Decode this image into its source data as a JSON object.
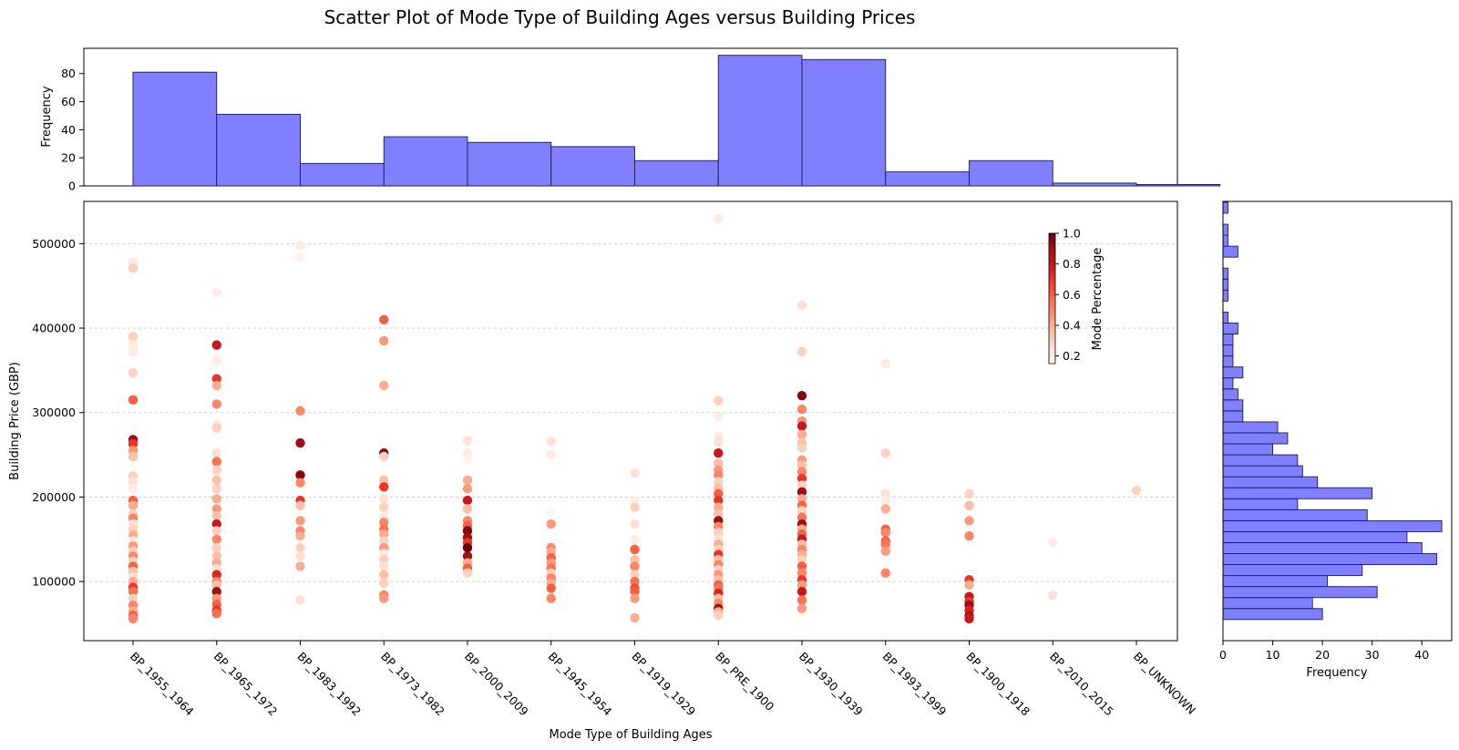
{
  "chart_data": {
    "type": "scatter",
    "title": "Scatter Plot of Mode Type of Building Ages versus Building Prices",
    "xlabel": "Mode Type of Building Ages",
    "ylabel": "Building Price (GBP)",
    "categories": [
      "BP_1955_1964",
      "BP_1965_1972",
      "BP_1983_1992",
      "BP_1973_1982",
      "BP_2000_2009",
      "BP_1945_1954",
      "BP_1919_1929",
      "BP_PRE_1900",
      "BP_1930_1939",
      "BP_1993_1999",
      "BP_1900_1918",
      "BP_2010_2015",
      "BP_UNKNOWN"
    ],
    "ylim": [
      30000,
      550000
    ],
    "yticks": [
      100000,
      200000,
      300000,
      400000,
      500000
    ],
    "grid": "y",
    "colorbar": {
      "label": "Mode Percentage",
      "range": [
        0.15,
        1.0
      ],
      "ticks": [
        0.2,
        0.4,
        0.6,
        0.8,
        1.0
      ],
      "colormap": "Reds"
    },
    "points": [
      [
        0,
        478000,
        0.22
      ],
      [
        0,
        471000,
        0.3
      ],
      [
        0,
        390000,
        0.3
      ],
      [
        0,
        380000,
        0.2
      ],
      [
        0,
        372000,
        0.2
      ],
      [
        0,
        347000,
        0.3
      ],
      [
        0,
        315000,
        0.6
      ],
      [
        0,
        268000,
        0.9
      ],
      [
        0,
        263000,
        0.7
      ],
      [
        0,
        255000,
        0.45
      ],
      [
        0,
        248000,
        0.35
      ],
      [
        0,
        225000,
        0.3
      ],
      [
        0,
        218000,
        0.25
      ],
      [
        0,
        210000,
        0.2
      ],
      [
        0,
        196000,
        0.6
      ],
      [
        0,
        190000,
        0.4
      ],
      [
        0,
        180000,
        0.3
      ],
      [
        0,
        175000,
        0.5
      ],
      [
        0,
        168000,
        0.25
      ],
      [
        0,
        162000,
        0.3
      ],
      [
        0,
        155000,
        0.4
      ],
      [
        0,
        148000,
        0.2
      ],
      [
        0,
        142000,
        0.45
      ],
      [
        0,
        136000,
        0.3
      ],
      [
        0,
        130000,
        0.5
      ],
      [
        0,
        124000,
        0.3
      ],
      [
        0,
        118000,
        0.6
      ],
      [
        0,
        112000,
        0.35
      ],
      [
        0,
        106000,
        0.25
      ],
      [
        0,
        100000,
        0.4
      ],
      [
        0,
        93000,
        0.7
      ],
      [
        0,
        88000,
        0.55
      ],
      [
        0,
        80000,
        0.3
      ],
      [
        0,
        72000,
        0.5
      ],
      [
        0,
        65000,
        0.4
      ],
      [
        0,
        60000,
        0.6
      ],
      [
        0,
        56000,
        0.5
      ],
      [
        1,
        442000,
        0.2
      ],
      [
        1,
        380000,
        0.8
      ],
      [
        1,
        362000,
        0.2
      ],
      [
        1,
        340000,
        0.7
      ],
      [
        1,
        332000,
        0.4
      ],
      [
        1,
        310000,
        0.5
      ],
      [
        1,
        286000,
        0.2
      ],
      [
        1,
        282000,
        0.3
      ],
      [
        1,
        252000,
        0.25
      ],
      [
        1,
        242000,
        0.55
      ],
      [
        1,
        232000,
        0.3
      ],
      [
        1,
        220000,
        0.35
      ],
      [
        1,
        210000,
        0.3
      ],
      [
        1,
        198000,
        0.4
      ],
      [
        1,
        186000,
        0.45
      ],
      [
        1,
        178000,
        0.35
      ],
      [
        1,
        168000,
        0.8
      ],
      [
        1,
        160000,
        0.3
      ],
      [
        1,
        150000,
        0.5
      ],
      [
        1,
        140000,
        0.3
      ],
      [
        1,
        130000,
        0.35
      ],
      [
        1,
        122000,
        0.4
      ],
      [
        1,
        115000,
        0.25
      ],
      [
        1,
        108000,
        0.75
      ],
      [
        1,
        100000,
        0.5
      ],
      [
        1,
        96000,
        0.35
      ],
      [
        1,
        88000,
        0.9
      ],
      [
        1,
        80000,
        0.45
      ],
      [
        1,
        73000,
        0.6
      ],
      [
        1,
        66000,
        0.7
      ],
      [
        1,
        62000,
        0.55
      ],
      [
        2,
        498000,
        0.2
      ],
      [
        2,
        484000,
        0.15
      ],
      [
        2,
        302000,
        0.5
      ],
      [
        2,
        264000,
        0.9
      ],
      [
        2,
        226000,
        0.95
      ],
      [
        2,
        217000,
        0.5
      ],
      [
        2,
        196000,
        0.7
      ],
      [
        2,
        190000,
        0.35
      ],
      [
        2,
        172000,
        0.45
      ],
      [
        2,
        160000,
        0.5
      ],
      [
        2,
        154000,
        0.4
      ],
      [
        2,
        140000,
        0.3
      ],
      [
        2,
        130000,
        0.25
      ],
      [
        2,
        118000,
        0.4
      ],
      [
        2,
        78000,
        0.25
      ],
      [
        3,
        410000,
        0.6
      ],
      [
        3,
        385000,
        0.45
      ],
      [
        3,
        332000,
        0.4
      ],
      [
        3,
        252000,
        0.95
      ],
      [
        3,
        248000,
        0.3
      ],
      [
        3,
        220000,
        0.35
      ],
      [
        3,
        212000,
        0.7
      ],
      [
        3,
        198000,
        0.25
      ],
      [
        3,
        188000,
        0.3
      ],
      [
        3,
        178000,
        0.2
      ],
      [
        3,
        170000,
        0.5
      ],
      [
        3,
        162000,
        0.55
      ],
      [
        3,
        156000,
        0.4
      ],
      [
        3,
        148000,
        0.3
      ],
      [
        3,
        140000,
        0.45
      ],
      [
        3,
        133000,
        0.2
      ],
      [
        3,
        126000,
        0.3
      ],
      [
        3,
        118000,
        0.25
      ],
      [
        3,
        108000,
        0.35
      ],
      [
        3,
        98000,
        0.3
      ],
      [
        3,
        84000,
        0.5
      ],
      [
        3,
        80000,
        0.45
      ],
      [
        4,
        267000,
        0.25
      ],
      [
        4,
        252000,
        0.2
      ],
      [
        4,
        245000,
        0.15
      ],
      [
        4,
        220000,
        0.4
      ],
      [
        4,
        210000,
        0.45
      ],
      [
        4,
        196000,
        0.8
      ],
      [
        4,
        186000,
        0.35
      ],
      [
        4,
        172000,
        0.5
      ],
      [
        4,
        166000,
        0.6
      ],
      [
        4,
        160000,
        0.95
      ],
      [
        4,
        152000,
        0.9
      ],
      [
        4,
        146000,
        0.7
      ],
      [
        4,
        140000,
        1.0
      ],
      [
        4,
        130000,
        0.9
      ],
      [
        4,
        122000,
        0.4
      ],
      [
        4,
        116000,
        0.6
      ],
      [
        4,
        110000,
        0.3
      ],
      [
        5,
        266000,
        0.25
      ],
      [
        5,
        250000,
        0.2
      ],
      [
        5,
        182000,
        0.15
      ],
      [
        5,
        168000,
        0.45
      ],
      [
        5,
        140000,
        0.5
      ],
      [
        5,
        135000,
        0.4
      ],
      [
        5,
        128000,
        0.6
      ],
      [
        5,
        122000,
        0.45
      ],
      [
        5,
        116000,
        0.55
      ],
      [
        5,
        110000,
        0.3
      ],
      [
        5,
        104000,
        0.5
      ],
      [
        5,
        98000,
        0.4
      ],
      [
        5,
        92000,
        0.6
      ],
      [
        5,
        80000,
        0.5
      ],
      [
        6,
        228000,
        0.25
      ],
      [
        6,
        196000,
        0.2
      ],
      [
        6,
        188000,
        0.3
      ],
      [
        6,
        168000,
        0.25
      ],
      [
        6,
        150000,
        0.2
      ],
      [
        6,
        138000,
        0.6
      ],
      [
        6,
        126000,
        0.35
      ],
      [
        6,
        118000,
        0.5
      ],
      [
        6,
        108000,
        0.3
      ],
      [
        6,
        100000,
        0.55
      ],
      [
        6,
        92000,
        0.65
      ],
      [
        6,
        88000,
        0.6
      ],
      [
        6,
        80000,
        0.45
      ],
      [
        6,
        57000,
        0.4
      ],
      [
        7,
        530000,
        0.2
      ],
      [
        7,
        314000,
        0.3
      ],
      [
        7,
        296000,
        0.2
      ],
      [
        7,
        272000,
        0.2
      ],
      [
        7,
        265000,
        0.25
      ],
      [
        7,
        252000,
        0.8
      ],
      [
        7,
        240000,
        0.35
      ],
      [
        7,
        232000,
        0.45
      ],
      [
        7,
        226000,
        0.5
      ],
      [
        7,
        218000,
        0.3
      ],
      [
        7,
        210000,
        0.35
      ],
      [
        7,
        204000,
        0.6
      ],
      [
        7,
        196000,
        0.7
      ],
      [
        7,
        188000,
        0.4
      ],
      [
        7,
        180000,
        0.35
      ],
      [
        7,
        172000,
        0.9
      ],
      [
        7,
        165000,
        0.5
      ],
      [
        7,
        158000,
        0.3
      ],
      [
        7,
        150000,
        0.25
      ],
      [
        7,
        144000,
        0.4
      ],
      [
        7,
        138000,
        0.3
      ],
      [
        7,
        132000,
        0.7
      ],
      [
        7,
        126000,
        0.35
      ],
      [
        7,
        120000,
        0.5
      ],
      [
        7,
        114000,
        0.3
      ],
      [
        7,
        108000,
        0.45
      ],
      [
        7,
        102000,
        0.35
      ],
      [
        7,
        96000,
        0.6
      ],
      [
        7,
        92000,
        0.55
      ],
      [
        7,
        86000,
        0.75
      ],
      [
        7,
        80000,
        0.35
      ],
      [
        7,
        74000,
        0.5
      ],
      [
        7,
        68000,
        0.9
      ],
      [
        7,
        64000,
        0.4
      ],
      [
        7,
        60000,
        0.3
      ],
      [
        8,
        427000,
        0.25
      ],
      [
        8,
        372000,
        0.3
      ],
      [
        8,
        320000,
        0.95
      ],
      [
        8,
        304000,
        0.5
      ],
      [
        8,
        290000,
        0.45
      ],
      [
        8,
        284000,
        0.8
      ],
      [
        8,
        274000,
        0.4
      ],
      [
        8,
        264000,
        0.35
      ],
      [
        8,
        258000,
        0.3
      ],
      [
        8,
        244000,
        0.45
      ],
      [
        8,
        238000,
        0.35
      ],
      [
        8,
        230000,
        0.5
      ],
      [
        8,
        222000,
        0.7
      ],
      [
        8,
        214000,
        0.3
      ],
      [
        8,
        206000,
        0.9
      ],
      [
        8,
        198000,
        0.4
      ],
      [
        8,
        190000,
        0.6
      ],
      [
        8,
        184000,
        0.3
      ],
      [
        8,
        176000,
        0.55
      ],
      [
        8,
        168000,
        0.9
      ],
      [
        8,
        162000,
        0.4
      ],
      [
        8,
        156000,
        0.6
      ],
      [
        8,
        150000,
        0.8
      ],
      [
        8,
        144000,
        0.35
      ],
      [
        8,
        138000,
        0.5
      ],
      [
        8,
        132000,
        0.4
      ],
      [
        8,
        126000,
        0.3
      ],
      [
        8,
        118000,
        0.6
      ],
      [
        8,
        110000,
        0.5
      ],
      [
        8,
        102000,
        0.7
      ],
      [
        8,
        96000,
        0.45
      ],
      [
        8,
        88000,
        0.8
      ],
      [
        8,
        78000,
        0.55
      ],
      [
        8,
        68000,
        0.45
      ],
      [
        9,
        358000,
        0.2
      ],
      [
        9,
        252000,
        0.3
      ],
      [
        9,
        204000,
        0.25
      ],
      [
        9,
        196000,
        0.2
      ],
      [
        9,
        186000,
        0.4
      ],
      [
        9,
        162000,
        0.6
      ],
      [
        9,
        158000,
        0.5
      ],
      [
        9,
        148000,
        0.6
      ],
      [
        9,
        144000,
        0.55
      ],
      [
        9,
        136000,
        0.45
      ],
      [
        9,
        110000,
        0.5
      ],
      [
        10,
        204000,
        0.3
      ],
      [
        10,
        190000,
        0.35
      ],
      [
        10,
        172000,
        0.45
      ],
      [
        10,
        154000,
        0.5
      ],
      [
        10,
        102000,
        0.7
      ],
      [
        10,
        96000,
        0.4
      ],
      [
        10,
        82000,
        0.8
      ],
      [
        10,
        76000,
        0.7
      ],
      [
        10,
        72000,
        0.9
      ],
      [
        10,
        66000,
        0.75
      ],
      [
        10,
        60000,
        0.85
      ],
      [
        10,
        56000,
        0.8
      ],
      [
        11,
        146000,
        0.2
      ],
      [
        11,
        84000,
        0.25
      ],
      [
        12,
        208000,
        0.3
      ]
    ],
    "histogram_top": {
      "ylabel": "Frequency",
      "yticks": [
        0,
        20,
        40,
        60,
        80
      ],
      "ylim": [
        0,
        98
      ],
      "values": [
        81,
        51,
        16,
        35,
        31,
        28,
        18,
        93,
        90,
        10,
        18,
        2,
        1
      ]
    },
    "histogram_right": {
      "xlabel": "Frequency",
      "xticks": [
        0,
        10,
        20,
        30,
        40
      ],
      "xlim": [
        0,
        46
      ],
      "bins": [
        {
          "lo": 55000,
          "hi": 68000,
          "count": 20
        },
        {
          "lo": 68000,
          "hi": 81000,
          "count": 18
        },
        {
          "lo": 81000,
          "hi": 94000,
          "count": 31
        },
        {
          "lo": 94000,
          "hi": 107000,
          "count": 21
        },
        {
          "lo": 107000,
          "hi": 120000,
          "count": 28
        },
        {
          "lo": 120000,
          "hi": 133000,
          "count": 43
        },
        {
          "lo": 133000,
          "hi": 146000,
          "count": 40
        },
        {
          "lo": 146000,
          "hi": 159000,
          "count": 37
        },
        {
          "lo": 159000,
          "hi": 172000,
          "count": 44
        },
        {
          "lo": 172000,
          "hi": 185000,
          "count": 29
        },
        {
          "lo": 185000,
          "hi": 198000,
          "count": 15
        },
        {
          "lo": 198000,
          "hi": 211000,
          "count": 30
        },
        {
          "lo": 211000,
          "hi": 224000,
          "count": 19
        },
        {
          "lo": 224000,
          "hi": 237000,
          "count": 16
        },
        {
          "lo": 237000,
          "hi": 250000,
          "count": 15
        },
        {
          "lo": 250000,
          "hi": 263000,
          "count": 10
        },
        {
          "lo": 263000,
          "hi": 276000,
          "count": 13
        },
        {
          "lo": 276000,
          "hi": 289000,
          "count": 11
        },
        {
          "lo": 289000,
          "hi": 302000,
          "count": 4
        },
        {
          "lo": 302000,
          "hi": 315000,
          "count": 4
        },
        {
          "lo": 315000,
          "hi": 328000,
          "count": 3
        },
        {
          "lo": 328000,
          "hi": 341000,
          "count": 2
        },
        {
          "lo": 341000,
          "hi": 354000,
          "count": 4
        },
        {
          "lo": 354000,
          "hi": 367000,
          "count": 2
        },
        {
          "lo": 367000,
          "hi": 380000,
          "count": 2
        },
        {
          "lo": 380000,
          "hi": 393000,
          "count": 2
        },
        {
          "lo": 393000,
          "hi": 406000,
          "count": 3
        },
        {
          "lo": 406000,
          "hi": 419000,
          "count": 1
        },
        {
          "lo": 419000,
          "hi": 432000,
          "count": 0
        },
        {
          "lo": 432000,
          "hi": 445000,
          "count": 1
        },
        {
          "lo": 445000,
          "hi": 458000,
          "count": 1
        },
        {
          "lo": 458000,
          "hi": 471000,
          "count": 1
        },
        {
          "lo": 471000,
          "hi": 484000,
          "count": 0
        },
        {
          "lo": 484000,
          "hi": 497000,
          "count": 3
        },
        {
          "lo": 497000,
          "hi": 510000,
          "count": 1
        },
        {
          "lo": 510000,
          "hi": 523000,
          "count": 1
        },
        {
          "lo": 523000,
          "hi": 536000,
          "count": 0
        },
        {
          "lo": 536000,
          "hi": 549000,
          "count": 1
        }
      ]
    },
    "colors": {
      "histogram_fill": "#8080ff",
      "histogram_edge": "#1a1a55",
      "grid": "#c8c8c8"
    }
  }
}
